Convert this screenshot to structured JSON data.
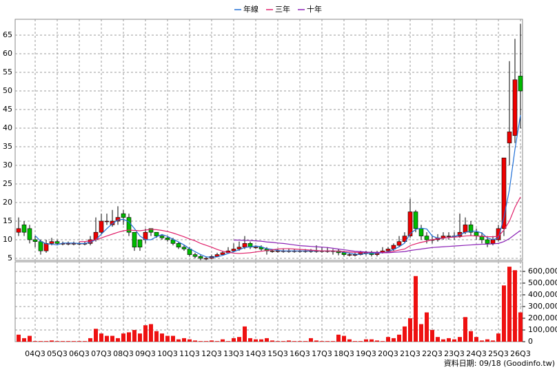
{
  "chart_data": {
    "type": "candlestick",
    "footer": "資料日期: 09/18 (Goodinfo.tw)",
    "legend": "top",
    "grid": true,
    "up_color": "#ee0000",
    "down_color": "#00bb00",
    "categories": [
      null,
      null,
      null,
      "04Q3",
      null,
      null,
      null,
      "05Q3",
      null,
      null,
      null,
      "06Q3",
      null,
      null,
      null,
      "07Q3",
      null,
      null,
      null,
      "08Q3",
      null,
      null,
      null,
      "09Q3",
      null,
      null,
      null,
      "10Q3",
      null,
      null,
      null,
      "11Q3",
      null,
      null,
      null,
      "12Q3",
      null,
      null,
      null,
      "13Q3",
      null,
      null,
      null,
      "14Q3",
      null,
      null,
      null,
      "15Q3",
      null,
      null,
      null,
      "16Q3",
      null,
      null,
      null,
      "17Q3",
      null,
      null,
      null,
      "18Q3",
      null,
      null,
      null,
      "19Q3",
      null,
      null,
      null,
      "20Q3",
      null,
      null,
      null,
      "21Q3",
      null,
      null,
      null,
      "22Q3",
      null,
      null,
      null,
      "23Q3",
      null,
      null,
      null,
      "24Q3",
      null,
      null,
      null,
      "25Q3",
      null,
      null,
      null,
      "26Q3"
    ],
    "open": [
      12,
      14,
      13,
      10,
      9.5,
      7,
      9,
      9.5,
      9,
      9,
      9,
      9,
      9,
      9,
      10,
      12,
      15,
      14,
      15,
      17,
      16,
      12,
      10,
      10,
      13,
      12,
      11,
      10.5,
      10,
      9,
      8,
      7.5,
      6,
      5.5,
      5,
      5,
      5.5,
      6,
      6.5,
      7,
      7.5,
      8,
      9,
      8,
      8,
      7.5,
      7,
      7,
      7,
      7,
      7,
      7,
      7,
      7,
      7,
      7,
      7,
      7,
      7,
      6.5,
      6,
      6,
      6,
      6.5,
      6.5,
      6,
      6.5,
      7,
      7.5,
      8.5,
      9.5,
      11,
      17.5,
      13,
      11,
      10,
      10,
      10.5,
      11,
      11,
      11,
      12,
      14,
      12,
      11,
      10,
      9,
      10,
      13,
      36,
      38,
      54
    ],
    "high": [
      16,
      15,
      14,
      11,
      10,
      10,
      10.5,
      10,
      9.5,
      9.5,
      9.5,
      9.5,
      9.5,
      11,
      16,
      17,
      17,
      18,
      19,
      18,
      17,
      12,
      10,
      13,
      13,
      12,
      11.5,
      11,
      10.5,
      9.5,
      8.5,
      8,
      6.5,
      6,
      5.5,
      6,
      6.5,
      7,
      8,
      9,
      9.5,
      11,
      9.5,
      8.5,
      8.5,
      8,
      7.5,
      7.5,
      7.5,
      7.5,
      7.5,
      7.5,
      7.5,
      7.5,
      8.5,
      8,
      8,
      7.5,
      7.5,
      7,
      6.5,
      6.5,
      7,
      7,
      7,
      7,
      8,
      8,
      9,
      11,
      12,
      21,
      18,
      14,
      12,
      11,
      11.5,
      12,
      12,
      12,
      17,
      16,
      15,
      13,
      12,
      11,
      11,
      14,
      32,
      58,
      64,
      68
    ],
    "low": [
      11,
      11,
      9,
      8,
      6,
      6.5,
      8.5,
      8.5,
      8.5,
      8.5,
      8.5,
      8.5,
      8.5,
      8.5,
      9.5,
      11.5,
      14,
      13.5,
      14,
      14,
      11,
      7,
      7,
      9,
      11,
      10.5,
      10,
      9.5,
      8.5,
      7.5,
      7,
      5.5,
      5,
      4.5,
      4.5,
      4.8,
      5.3,
      6,
      6.5,
      7,
      7,
      7.5,
      7.5,
      7.5,
      7,
      6,
      6.5,
      6.5,
      6.5,
      6.5,
      6.5,
      6.5,
      6.5,
      6.5,
      6.5,
      6.5,
      6.5,
      6,
      5.8,
      5.5,
      5.5,
      5.5,
      5.8,
      5.8,
      5.5,
      5.5,
      6.3,
      6.5,
      7,
      8,
      9,
      10.5,
      12,
      10,
      9,
      9,
      9.5,
      10,
      10,
      10,
      10.5,
      11.5,
      11,
      10,
      9,
      8,
      8.5,
      9.5,
      11,
      30,
      36,
      40
    ],
    "close": [
      13,
      12,
      10,
      9.5,
      7,
      9,
      9.5,
      9,
      9,
      9,
      9,
      9,
      9,
      10,
      12,
      15,
      15,
      15,
      16,
      16,
      12,
      8,
      8,
      12,
      12,
      11,
      10.5,
      10,
      9,
      8,
      7.5,
      6,
      5.5,
      5,
      5,
      5.5,
      6,
      6.5,
      7,
      7.5,
      8,
      9,
      8,
      8,
      7.5,
      7,
      7,
      7,
      7,
      7,
      7,
      7,
      7,
      7,
      7,
      7,
      7,
      7,
      6.5,
      6,
      6,
      6,
      6.5,
      6.5,
      6,
      6.5,
      7,
      7.5,
      8.5,
      9.5,
      11,
      17.5,
      13,
      11,
      10,
      10,
      10.5,
      11,
      11,
      11,
      12,
      14,
      12,
      11,
      10,
      9,
      10,
      13,
      32,
      39,
      53,
      50
    ],
    "series": [
      {
        "name": "年線",
        "color": "#1f6fd6",
        "values": [
          null,
          null,
          null,
          11.1,
          9.6,
          8.9,
          8.8,
          8.6,
          9.1,
          9.1,
          9.1,
          9,
          9,
          9.3,
          10,
          11.5,
          13,
          14.3,
          15.3,
          15.5,
          14.8,
          13,
          11,
          10,
          10,
          10.8,
          11.4,
          10.9,
          10.1,
          9.4,
          8.6,
          7.6,
          6.8,
          6,
          5.4,
          5.3,
          5.4,
          5.8,
          6.3,
          6.8,
          7.3,
          7.9,
          8.1,
          8.3,
          8.1,
          7.6,
          7.4,
          7.1,
          7,
          7,
          7,
          7,
          7,
          7,
          7,
          7,
          7,
          7,
          6.9,
          6.6,
          6.4,
          6.1,
          6.1,
          6.3,
          6.3,
          6.4,
          6.5,
          6.8,
          7.4,
          8.1,
          9.1,
          11.6,
          12.8,
          13.1,
          12.9,
          11,
          10.4,
          10.4,
          10.6,
          10.9,
          11.3,
          12,
          12.3,
          12.3,
          11.8,
          10.5,
          10,
          10.5,
          16,
          23.5,
          34.3,
          43.5
        ]
      },
      {
        "name": "三年",
        "color": "#e0206a",
        "values": [
          null,
          null,
          null,
          null,
          null,
          null,
          null,
          null,
          null,
          null,
          null,
          9.5,
          9.5,
          9.7,
          10,
          10.5,
          11,
          11.5,
          12,
          12.4,
          12.6,
          12.5,
          12.4,
          12.6,
          12.8,
          12.7,
          12.5,
          12.2,
          11.8,
          11.3,
          10.8,
          10.2,
          9.7,
          9,
          8.5,
          8,
          7.4,
          6.9,
          6.6,
          6.4,
          6.3,
          6.4,
          6.5,
          6.7,
          6.9,
          7.1,
          7.3,
          7.5,
          7.6,
          7.6,
          7.5,
          7.4,
          7.3,
          7.2,
          7.1,
          7,
          7,
          7,
          6.9,
          6.8,
          6.7,
          6.6,
          6.6,
          6.6,
          6.6,
          6.6,
          6.6,
          6.7,
          6.9,
          7.2,
          7.5,
          8.4,
          8.9,
          9.3,
          9.6,
          10,
          10.2,
          10.4,
          10.6,
          10.7,
          10.8,
          11,
          11.1,
          11,
          10.9,
          10.8,
          10.8,
          10.9,
          12.6,
          15,
          18.7,
          21.5
        ]
      },
      {
        "name": "十年",
        "color": "#8a1fb5",
        "values": [
          null,
          null,
          null,
          null,
          null,
          null,
          null,
          null,
          null,
          null,
          null,
          null,
          null,
          null,
          null,
          null,
          null,
          null,
          null,
          null,
          null,
          null,
          null,
          null,
          null,
          null,
          null,
          null,
          null,
          null,
          null,
          null,
          null,
          null,
          null,
          null,
          null,
          null,
          null,
          9.9,
          9.9,
          9.8,
          9.8,
          9.7,
          9.6,
          9.4,
          9.3,
          9.1,
          9,
          8.8,
          8.6,
          8.4,
          8.3,
          8.2,
          8.1,
          8,
          7.9,
          7.7,
          7.5,
          7.3,
          7.1,
          6.9,
          6.8,
          6.7,
          6.6,
          6.6,
          6.5,
          6.5,
          6.6,
          6.7,
          6.8,
          7.1,
          7.3,
          7.5,
          7.7,
          7.9,
          8,
          8.1,
          8.2,
          8.3,
          8.4,
          8.5,
          8.6,
          8.7,
          8.8,
          8.8,
          8.9,
          9,
          9.5,
          10.3,
          11.4,
          12.5
        ]
      }
    ],
    "volume_color": "#ee1111",
    "volume": [
      60000,
      30000,
      50000,
      5000,
      5000,
      5000,
      10000,
      5000,
      5000,
      5000,
      5000,
      5000,
      5000,
      30000,
      110000,
      70000,
      50000,
      50000,
      30000,
      70000,
      80000,
      100000,
      70000,
      140000,
      150000,
      90000,
      70000,
      50000,
      50000,
      20000,
      30000,
      20000,
      10000,
      5000,
      5000,
      10000,
      5000,
      20000,
      5000,
      30000,
      40000,
      130000,
      30000,
      20000,
      20000,
      30000,
      10000,
      5000,
      5000,
      10000,
      5000,
      5000,
      5000,
      30000,
      10000,
      5000,
      5000,
      5000,
      60000,
      50000,
      20000,
      5000,
      5000,
      20000,
      20000,
      10000,
      5000,
      40000,
      30000,
      60000,
      130000,
      200000,
      560000,
      150000,
      250000,
      100000,
      40000,
      20000,
      30000,
      20000,
      40000,
      210000,
      90000,
      40000,
      10000,
      20000,
      10000,
      70000,
      480000,
      640000,
      610000,
      250000
    ],
    "ylim": [
      4.44,
      69.26
    ],
    "yticks": [
      5,
      10,
      15,
      20,
      25,
      30,
      35,
      40,
      45,
      50,
      55,
      60,
      65
    ],
    "y2lim": [
      0,
      682000
    ],
    "y2ticks": [
      0,
      {
        "value": 100000,
        "label": "100,000"
      },
      {
        "value": 200000,
        "label": "200,000"
      },
      {
        "value": 300000,
        "label": "300,000"
      },
      {
        "value": 400000,
        "label": "400,000"
      },
      {
        "value": 500000,
        "label": "500,000"
      },
      {
        "value": 600000,
        "label": "600,000"
      }
    ]
  }
}
